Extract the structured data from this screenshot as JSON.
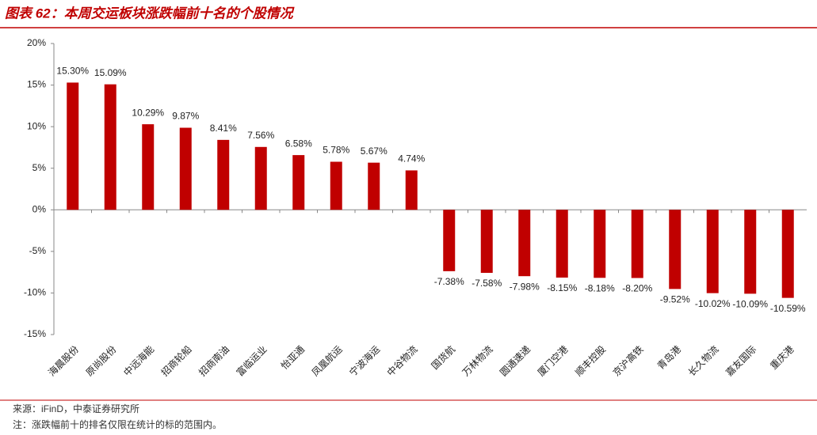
{
  "chart_data": {
    "type": "bar",
    "title": "图表 62：本周交运板块涨跌幅前十名的个股情况",
    "categories": [
      "海晨股份",
      "原尚股份",
      "中远海能",
      "招商轮船",
      "招商南油",
      "富临运业",
      "怡亚通",
      "凤凰航运",
      "宁波海运",
      "中谷物流",
      "国货航",
      "万林物流",
      "圆通速递",
      "厦门空港",
      "顺丰控股",
      "京沪高铁",
      "青岛港",
      "长久物流",
      "嘉友国际",
      "重庆港"
    ],
    "values": [
      15.3,
      15.09,
      10.29,
      9.87,
      8.41,
      7.56,
      6.58,
      5.78,
      5.67,
      4.74,
      -7.38,
      -7.58,
      -7.98,
      -8.15,
      -8.18,
      -8.2,
      -9.52,
      -10.02,
      -10.09,
      -10.59
    ],
    "value_labels": [
      "15.30%",
      "15.09%",
      "10.29%",
      "9.87%",
      "8.41%",
      "7.56%",
      "6.58%",
      "5.78%",
      "5.67%",
      "4.74%",
      "-7.38%",
      "-7.58%",
      "-7.98%",
      "-8.15%",
      "-8.18%",
      "-8.20%",
      "-9.52%",
      "-10.02%",
      "-10.09%",
      "-10.59%"
    ],
    "color": "#c00000",
    "ylim": [
      -15,
      20
    ],
    "yticks": [
      {
        "value": 20,
        "label": "20%"
      },
      {
        "value": 15,
        "label": "15%"
      },
      {
        "value": 10,
        "label": "10%"
      },
      {
        "value": 5,
        "label": "5%"
      },
      {
        "value": 0,
        "label": "0%"
      },
      {
        "value": -5,
        "label": "-5%"
      },
      {
        "value": -10,
        "label": "-10%"
      },
      {
        "value": -15,
        "label": "-15%"
      }
    ],
    "source": "来源：iFinD，中泰证券研究所",
    "note": "注：涨跌幅前十的排名仅限在统计的标的范围内。"
  }
}
